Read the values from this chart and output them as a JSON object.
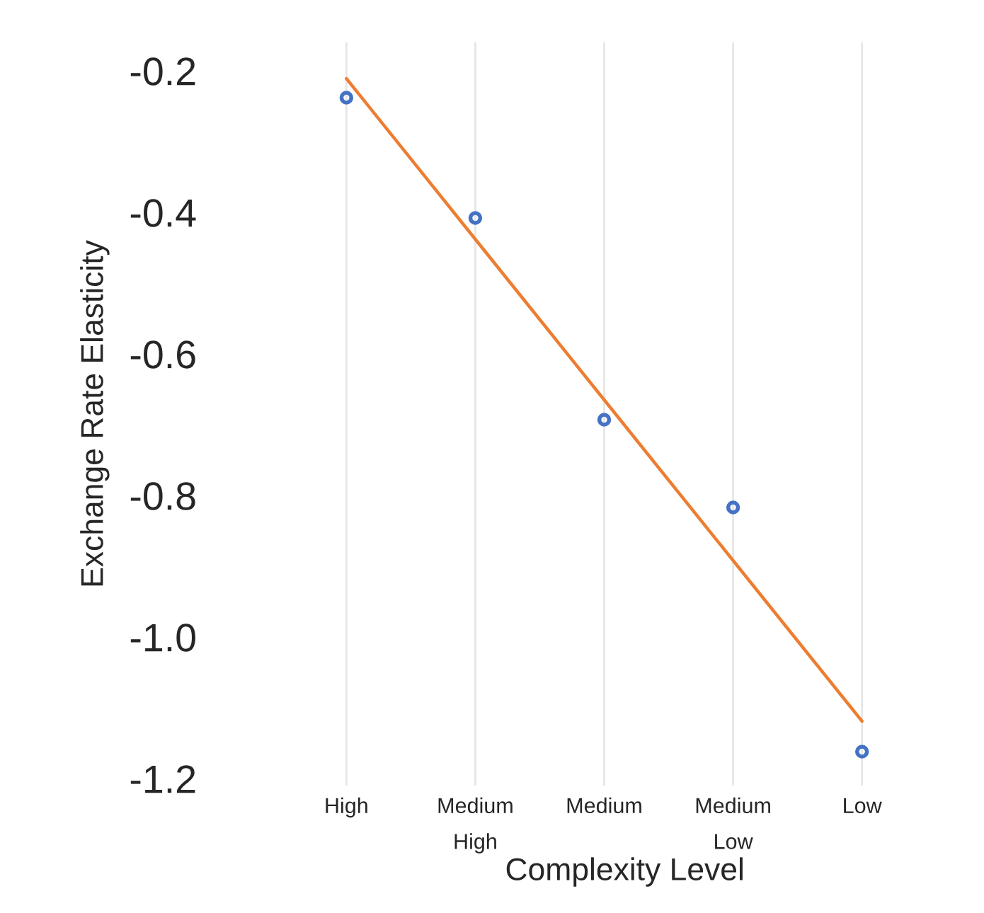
{
  "chart_data": {
    "type": "scatter",
    "xlabel": "Complexity Level",
    "ylabel": "Exchange Rate Elasticity",
    "categories": [
      "High",
      "Medium\nHigh",
      "Medium",
      "Medium\nLow",
      "Low"
    ],
    "series": [
      {
        "color": "#4472c4",
        "values": [
          -0.238,
          -0.408,
          -0.693,
          -0.817,
          -1.162
        ],
        "marker": "circle"
      },
      {
        "type": "line",
        "color": "#ed7d31",
        "values": [
          -0.211,
          -0.438,
          -0.665,
          -0.892,
          -1.119
        ],
        "line_style": "solid"
      }
    ],
    "ylim": [
      -1.21,
      -0.16
    ],
    "yticks": [
      {
        "value": -0.2,
        "label": "-0.2"
      },
      {
        "value": -0.4,
        "label": "-0.4"
      },
      {
        "value": -0.6,
        "label": "-0.6"
      },
      {
        "value": -0.8,
        "label": "-0.8"
      },
      {
        "value": -1.0,
        "label": "-1.0"
      },
      {
        "value": -1.2,
        "label": "-1.2"
      }
    ],
    "grid": "x",
    "legend": false
  }
}
